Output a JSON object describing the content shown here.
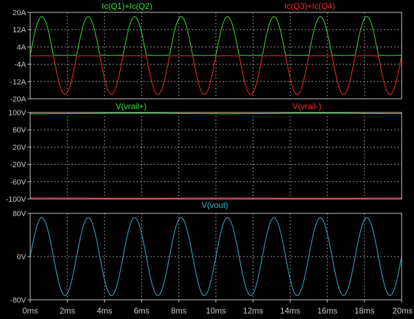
{
  "colors": {
    "background": "#000000",
    "frame": "#c8c8c8",
    "grid": "#9a9a9a",
    "axis_text": "#c8c8c8",
    "green": "#37e337",
    "red": "#ff2a2a",
    "cyan": "#33b8c8"
  },
  "x_axis": {
    "unit": "ms",
    "ticks": [
      "0ms",
      "2ms",
      "4ms",
      "6ms",
      "8ms",
      "10ms",
      "12ms",
      "14ms",
      "16ms",
      "18ms",
      "20ms"
    ]
  },
  "chart_data": [
    {
      "type": "line",
      "panel": "currents",
      "x_range_ms": [
        0,
        20
      ],
      "ylim": [
        -20,
        20
      ],
      "y_ticks": [
        "20A",
        "12A",
        "4A",
        "-4A",
        "-12A",
        "-20A"
      ],
      "y_tick_values": [
        20,
        12,
        4,
        -4,
        -12,
        -20
      ],
      "grid": true,
      "series": [
        {
          "name": "Ic(Q1)+Ic(Q2)",
          "color_key": "green",
          "model": "halfwave_positive",
          "peak_A": 18,
          "freq_kHz": 0.4,
          "quiescent_A": 0.2
        },
        {
          "name": "Ic(Q3)+Ic(Q4)",
          "color_key": "red",
          "model": "halfwave_negative",
          "peak_A": -18,
          "freq_kHz": 0.4,
          "quiescent_A": -0.2
        }
      ]
    },
    {
      "type": "line",
      "panel": "rails",
      "x_range_ms": [
        0,
        20
      ],
      "ylim": [
        -100,
        100
      ],
      "y_ticks": [
        "100V",
        "60V",
        "20V",
        "-20V",
        "-60V",
        "-100V"
      ],
      "y_tick_values": [
        100,
        60,
        20,
        -20,
        -60,
        -100
      ],
      "grid": true,
      "series": [
        {
          "name": "V(vrail+)",
          "color_key": "green",
          "nominal_V": 98.5,
          "ripple_V": 1.2
        },
        {
          "name": "V(vrail-)",
          "color_key": "red",
          "nominal_V": -98.5,
          "ripple_V": 1.2
        }
      ]
    },
    {
      "type": "line",
      "panel": "output",
      "x_range_ms": [
        0,
        20
      ],
      "ylim": [
        -80,
        80
      ],
      "y_ticks": [
        "80V",
        "0V",
        "-80V"
      ],
      "y_tick_values": [
        80,
        0,
        -80
      ],
      "grid": true,
      "series": [
        {
          "name": "V(vout)",
          "color_key": "cyan",
          "model": "sine",
          "amplitude_V": 72,
          "freq_kHz": 0.4
        }
      ]
    }
  ]
}
